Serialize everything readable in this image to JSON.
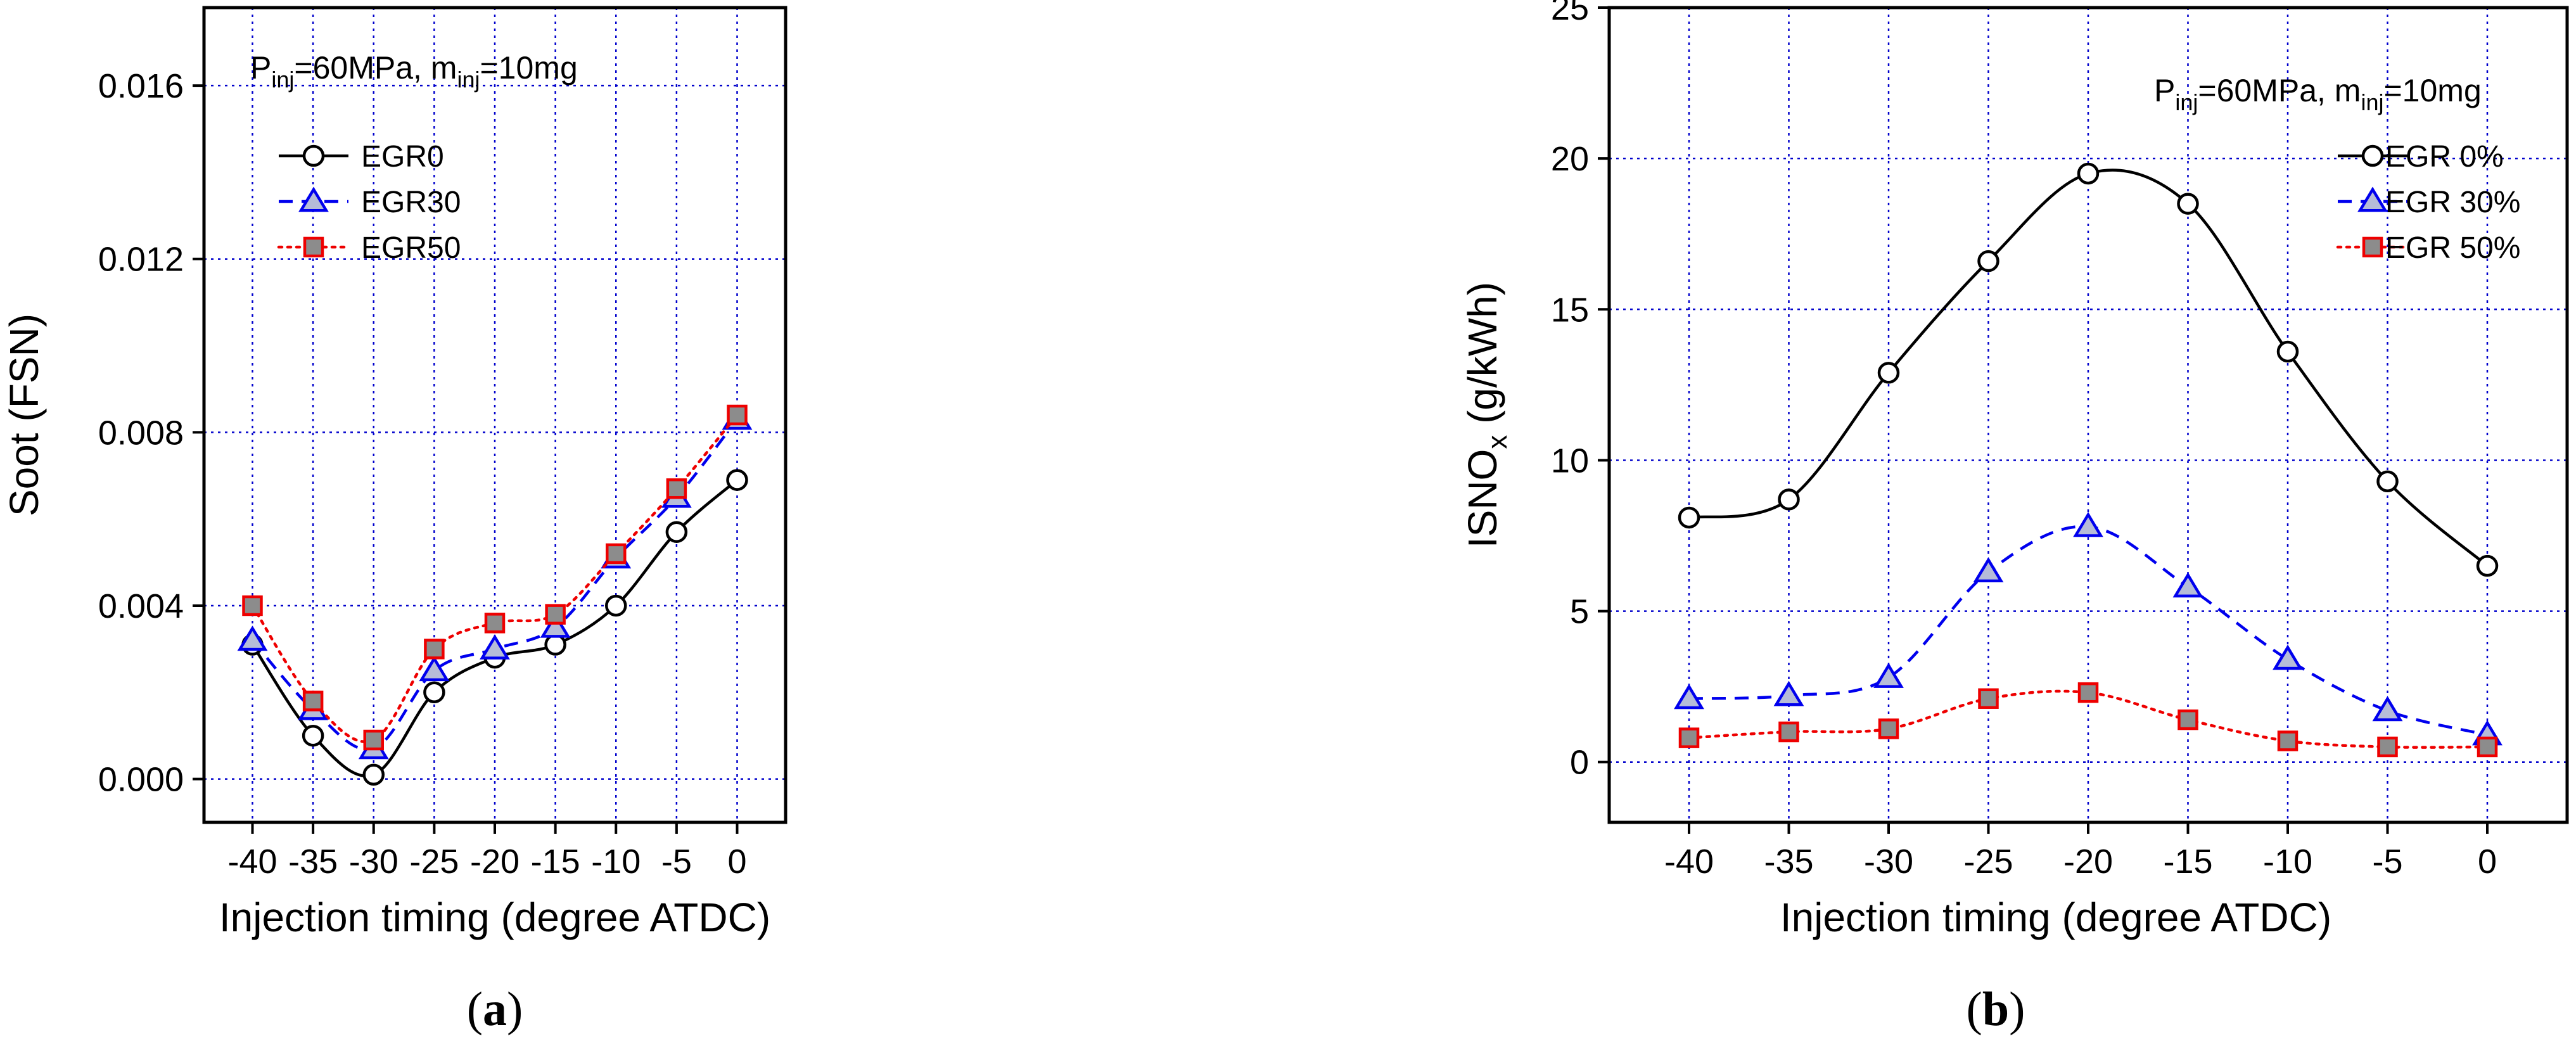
{
  "chart_data": [
    {
      "type": "line",
      "panel_label": "(a)",
      "panel_letter": "a",
      "condition": {
        "p_main": "P",
        "p_sub": "inj",
        "p_val": "=60MPa, m",
        "m_sub": "inj",
        "m_val": "=10mg"
      },
      "xlabel": "Injection timing (degree ATDC)",
      "ylabel": "Soot (FSN)",
      "x": [
        -40,
        -35,
        -30,
        -25,
        -20,
        -15,
        -10,
        -5,
        0
      ],
      "xlim": [
        -44,
        4
      ],
      "ylim": [
        -0.001,
        0.0178
      ],
      "xticks": [
        -40,
        -35,
        -30,
        -25,
        -20,
        -15,
        -10,
        -5,
        0
      ],
      "yticks": [
        0.0,
        0.004,
        0.008,
        0.012,
        0.016
      ],
      "ytick_labels": [
        "0.000",
        "0.004",
        "0.008",
        "0.012",
        "0.016"
      ],
      "grid": true,
      "legend_position": "top-left",
      "series": [
        {
          "name": "EGR0",
          "marker": "circle",
          "line": "solid",
          "color": "#000000",
          "fill": "#ffffff",
          "values": [
            0.0031,
            0.001,
            0.0001,
            0.002,
            0.0028,
            0.0031,
            0.004,
            0.0057,
            0.0069
          ]
        },
        {
          "name": "EGR30",
          "marker": "triangle",
          "line": "dashed",
          "color": "#0000ee",
          "fill": "#b6bcd8",
          "values": [
            0.0032,
            0.0016,
            0.0007,
            0.0025,
            0.003,
            0.0035,
            0.0051,
            0.0065,
            0.0083
          ]
        },
        {
          "name": "EGR50",
          "marker": "square",
          "line": "dotted",
          "color": "#ee0000",
          "fill": "#8c8c8c",
          "values": [
            0.004,
            0.0018,
            0.0009,
            0.003,
            0.0036,
            0.0038,
            0.0052,
            0.0067,
            0.0084
          ]
        }
      ]
    },
    {
      "type": "line",
      "panel_label": "(b)",
      "panel_letter": "b",
      "condition": {
        "p_main": "P",
        "p_sub": "inj",
        "p_val": "=60MPa, m",
        "m_sub": "inj",
        "m_val": "=10mg"
      },
      "xlabel": "Injection timing (degree ATDC)",
      "ylabel_main": "ISNO",
      "ylabel_sub": "x",
      "ylabel_rest": " (g/kWh)",
      "x": [
        -40,
        -35,
        -30,
        -25,
        -20,
        -15,
        -10,
        -5,
        0
      ],
      "xlim": [
        -44,
        4
      ],
      "ylim": [
        -2,
        25
      ],
      "xticks": [
        -40,
        -35,
        -30,
        -25,
        -20,
        -15,
        -10,
        -5,
        0
      ],
      "yticks": [
        0,
        5,
        10,
        15,
        20,
        25
      ],
      "ytick_labels": [
        "0",
        "5",
        "10",
        "15",
        "20",
        "25"
      ],
      "grid": true,
      "legend_position": "top-right",
      "series": [
        {
          "name": "EGR 0%",
          "marker": "circle",
          "line": "solid",
          "color": "#000000",
          "fill": "#ffffff",
          "values": [
            8.1,
            8.7,
            12.9,
            16.6,
            19.5,
            18.5,
            13.6,
            9.3,
            6.5
          ]
        },
        {
          "name": "EGR 30%",
          "marker": "triangle",
          "line": "dashed",
          "color": "#0000ee",
          "fill": "#b6bcd8",
          "values": [
            2.1,
            2.2,
            2.8,
            6.3,
            7.8,
            5.8,
            3.4,
            1.7,
            0.9
          ]
        },
        {
          "name": "EGR 50%",
          "marker": "square",
          "line": "dotted",
          "color": "#ee0000",
          "fill": "#8c8c8c",
          "values": [
            0.8,
            1.0,
            1.1,
            2.1,
            2.3,
            1.4,
            0.7,
            0.5,
            0.5
          ]
        }
      ]
    }
  ]
}
